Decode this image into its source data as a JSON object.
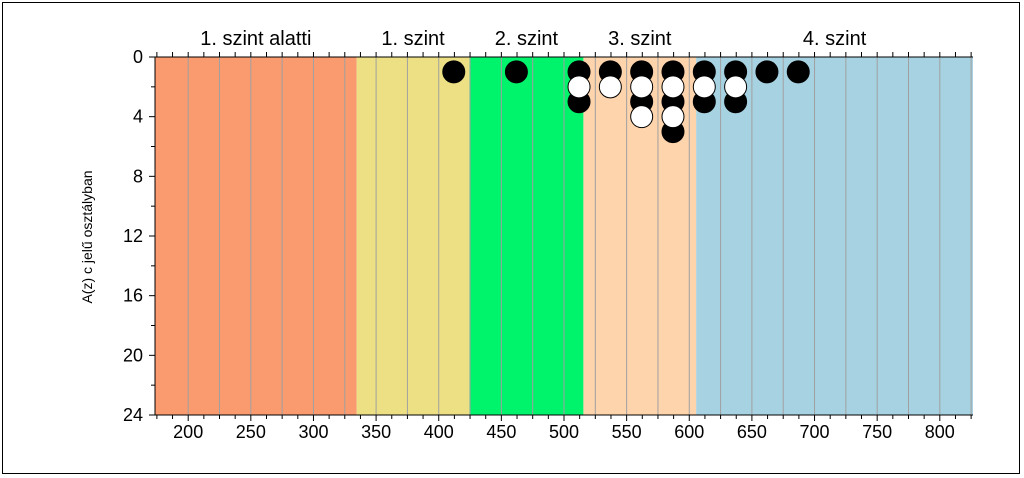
{
  "chart_data": {
    "type": "scatter",
    "title": "",
    "xlabel": "",
    "ylabel": "A(z) c jelű osztályban",
    "xlim": [
      173.5,
      826.5
    ],
    "ylim": [
      24,
      0
    ],
    "x_ticks": [
      200,
      250,
      300,
      350,
      400,
      450,
      500,
      550,
      600,
      650,
      700,
      750,
      800
    ],
    "y_ticks": [
      0,
      4,
      8,
      12,
      16,
      20,
      24
    ],
    "grid": "vertical",
    "bands": [
      {
        "label": "1. szint alatti",
        "from": 173.5,
        "to": 334.5,
        "color": "#fa9a6f"
      },
      {
        "label": "1. szint",
        "from": 334.5,
        "to": 424.5,
        "color": "#ede084"
      },
      {
        "label": "2. szint",
        "from": 424.5,
        "to": 515.5,
        "color": "#00f46b"
      },
      {
        "label": "3. szint",
        "from": 515.5,
        "to": 605.5,
        "color": "#fed4ad"
      },
      {
        "label": "4. szint",
        "from": 605.5,
        "to": 826.5,
        "color": "#a7d2e2"
      }
    ],
    "series": [
      {
        "color": "#000000",
        "points": [
          {
            "x": 412,
            "y": 1
          },
          {
            "x": 462,
            "y": 1
          },
          {
            "x": 512,
            "y": 1
          },
          {
            "x": 512,
            "y": 3
          },
          {
            "x": 537,
            "y": 1
          },
          {
            "x": 562,
            "y": 1
          },
          {
            "x": 562,
            "y": 3
          },
          {
            "x": 587,
            "y": 1
          },
          {
            "x": 587,
            "y": 3
          },
          {
            "x": 587,
            "y": 5
          },
          {
            "x": 612,
            "y": 1
          },
          {
            "x": 612,
            "y": 3
          },
          {
            "x": 637,
            "y": 1
          },
          {
            "x": 637,
            "y": 3
          },
          {
            "x": 662,
            "y": 1
          },
          {
            "x": 687,
            "y": 1
          }
        ]
      },
      {
        "color": "#ffffff",
        "points": [
          {
            "x": 512,
            "y": 2
          },
          {
            "x": 537,
            "y": 2
          },
          {
            "x": 562,
            "y": 2
          },
          {
            "x": 562,
            "y": 4
          },
          {
            "x": 587,
            "y": 2
          },
          {
            "x": 587,
            "y": 4
          },
          {
            "x": 612,
            "y": 2
          },
          {
            "x": 637,
            "y": 2
          }
        ]
      }
    ]
  }
}
